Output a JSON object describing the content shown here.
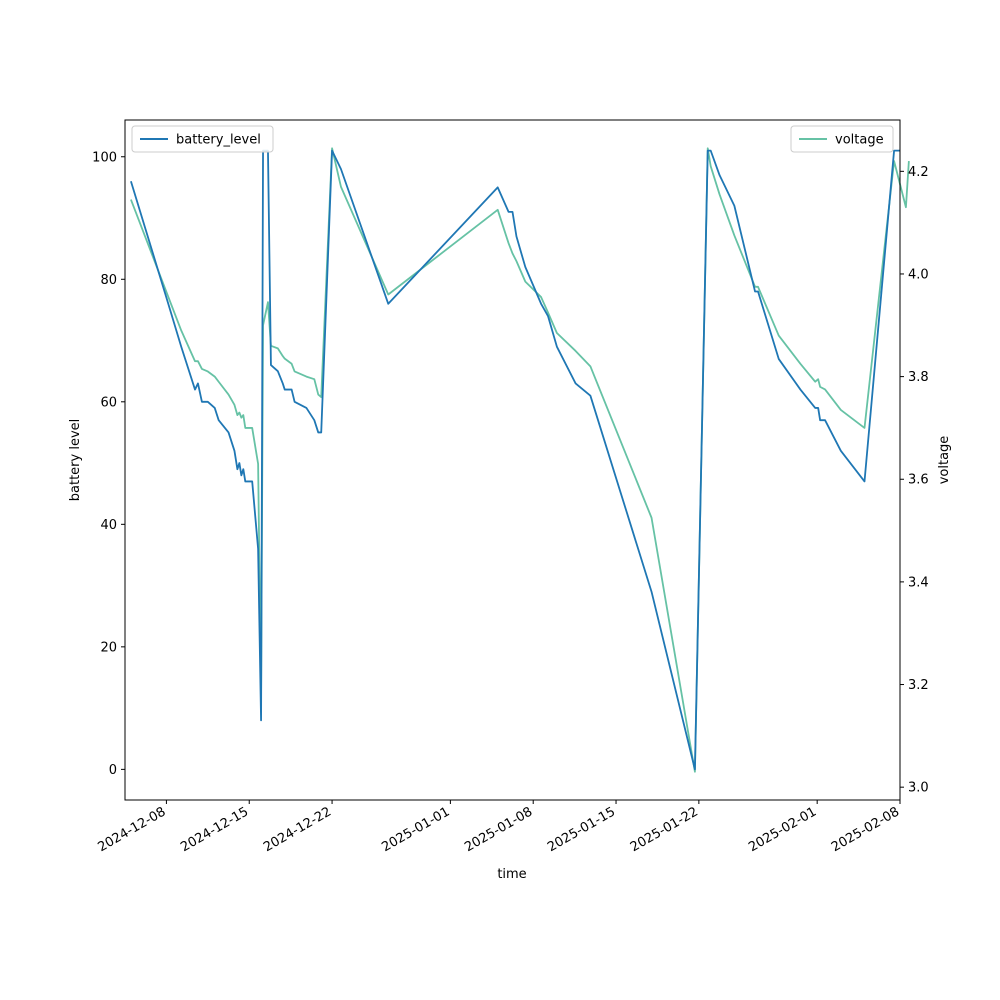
{
  "chart_data": {
    "type": "line",
    "xlabel": "time",
    "ylabel_left": "battery level",
    "ylabel_right": "voltage",
    "xlim": [
      "2024-12-04T12:00",
      "2025-02-08T00:00"
    ],
    "ylim_left": [
      -5,
      106
    ],
    "ylim_right": [
      2.975,
      4.3
    ],
    "xticks": [
      "2024-12-08",
      "2024-12-15",
      "2024-12-22",
      "2025-01-01",
      "2025-01-08",
      "2025-01-15",
      "2025-01-22",
      "2025-02-01",
      "2025-02-08"
    ],
    "yticks_left": [
      0,
      20,
      40,
      60,
      80,
      100
    ],
    "yticks_right": [
      "3.0",
      "3.2",
      "3.4",
      "3.6",
      "3.8",
      "4.0",
      "4.2"
    ],
    "grid": false,
    "legend_left": {
      "placement": "top-left",
      "label": "battery_level"
    },
    "legend_right": {
      "placement": "top-right",
      "label": "voltage"
    },
    "series": [
      {
        "name": "battery_level",
        "axis": "left",
        "color": "#1f77b4",
        "points": [
          [
            "2024-12-05T00:00",
            96
          ],
          [
            "2024-12-08T00:00",
            77
          ],
          [
            "2024-12-09T06:00",
            69
          ],
          [
            "2024-12-10T10:00",
            62
          ],
          [
            "2024-12-10T16:00",
            63
          ],
          [
            "2024-12-11T00:00",
            60
          ],
          [
            "2024-12-11T12:00",
            60
          ],
          [
            "2024-12-12T02:00",
            59
          ],
          [
            "2024-12-12T10:00",
            57
          ],
          [
            "2024-12-13T06:00",
            55
          ],
          [
            "2024-12-13T18:00",
            52
          ],
          [
            "2024-12-14T00:00",
            49
          ],
          [
            "2024-12-14T04:00",
            50
          ],
          [
            "2024-12-14T08:00",
            48
          ],
          [
            "2024-12-14T12:00",
            49
          ],
          [
            "2024-12-14T16:00",
            47
          ],
          [
            "2024-12-15T06:00",
            47
          ],
          [
            "2024-12-15T18:00",
            36
          ],
          [
            "2024-12-16T00:00",
            8
          ],
          [
            "2024-12-16T04:00",
            101
          ],
          [
            "2024-12-16T14:00",
            101
          ],
          [
            "2024-12-16T20:00",
            66
          ],
          [
            "2024-12-17T10:00",
            65
          ],
          [
            "2024-12-17T20:00",
            63
          ],
          [
            "2024-12-18T00:00",
            62
          ],
          [
            "2024-12-18T14:00",
            62
          ],
          [
            "2024-12-18T20:00",
            60
          ],
          [
            "2024-12-19T20:00",
            59
          ],
          [
            "2024-12-20T12:00",
            57
          ],
          [
            "2024-12-20T20:00",
            55
          ],
          [
            "2024-12-21T02:00",
            55
          ],
          [
            "2024-12-22T00:00",
            101
          ],
          [
            "2024-12-22T18:00",
            98
          ],
          [
            "2024-12-26T18:00",
            76
          ],
          [
            "2025-01-05T00:00",
            95
          ],
          [
            "2025-01-05T22:00",
            91
          ],
          [
            "2025-01-06T06:00",
            91
          ],
          [
            "2025-01-06T14:00",
            87
          ],
          [
            "2025-01-07T08:00",
            82
          ],
          [
            "2025-01-08T16:00",
            76
          ],
          [
            "2025-01-09T06:00",
            74
          ],
          [
            "2025-01-10T00:00",
            69
          ],
          [
            "2025-01-11T14:00",
            63
          ],
          [
            "2025-01-12T20:00",
            61
          ],
          [
            "2025-01-18T00:00",
            29
          ],
          [
            "2025-01-21T16:00",
            0
          ],
          [
            "2025-01-22T18:00",
            101
          ],
          [
            "2025-01-23T00:00",
            101
          ],
          [
            "2025-01-23T18:00",
            97
          ],
          [
            "2025-01-25T00:00",
            92
          ],
          [
            "2025-01-26T18:00",
            78
          ],
          [
            "2025-01-27T00:00",
            78
          ],
          [
            "2025-01-28T18:00",
            67
          ],
          [
            "2025-01-30T14:00",
            62
          ],
          [
            "2025-01-31T20:00",
            59
          ],
          [
            "2025-02-01T02:00",
            59
          ],
          [
            "2025-02-01T06:00",
            57
          ],
          [
            "2025-02-01T16:00",
            57
          ],
          [
            "2025-02-03T00:00",
            52
          ],
          [
            "2025-02-05T00:00",
            47
          ],
          [
            "2025-02-07T12:00",
            101
          ],
          [
            "2025-02-08T00:00",
            101
          ]
        ]
      },
      {
        "name": "voltage",
        "axis": "right",
        "color": "#66c2a5",
        "points": [
          [
            "2024-12-05T00:00",
            4.145
          ],
          [
            "2024-12-08T00:00",
            3.965
          ],
          [
            "2024-12-09T06:00",
            3.89
          ],
          [
            "2024-12-10T10:00",
            3.83
          ],
          [
            "2024-12-10T16:00",
            3.83
          ],
          [
            "2024-12-11T00:00",
            3.815
          ],
          [
            "2024-12-11T12:00",
            3.81
          ],
          [
            "2024-12-12T02:00",
            3.8
          ],
          [
            "2024-12-12T10:00",
            3.79
          ],
          [
            "2024-12-13T06:00",
            3.765
          ],
          [
            "2024-12-13T18:00",
            3.745
          ],
          [
            "2024-12-14T00:00",
            3.725
          ],
          [
            "2024-12-14T04:00",
            3.73
          ],
          [
            "2024-12-14T08:00",
            3.72
          ],
          [
            "2024-12-14T12:00",
            3.725
          ],
          [
            "2024-12-14T16:00",
            3.7
          ],
          [
            "2024-12-15T06:00",
            3.7
          ],
          [
            "2024-12-15T18:00",
            3.63
          ],
          [
            "2024-12-16T00:00",
            3.175
          ],
          [
            "2024-12-16T04:00",
            3.9
          ],
          [
            "2024-12-16T14:00",
            3.945
          ],
          [
            "2024-12-16T20:00",
            3.86
          ],
          [
            "2024-12-17T10:00",
            3.855
          ],
          [
            "2024-12-17T20:00",
            3.84
          ],
          [
            "2024-12-18T00:00",
            3.835
          ],
          [
            "2024-12-18T14:00",
            3.825
          ],
          [
            "2024-12-18T20:00",
            3.81
          ],
          [
            "2024-12-19T20:00",
            3.8
          ],
          [
            "2024-12-20T12:00",
            3.795
          ],
          [
            "2024-12-20T20:00",
            3.765
          ],
          [
            "2024-12-21T02:00",
            3.76
          ],
          [
            "2024-12-22T00:00",
            4.245
          ],
          [
            "2024-12-22T18:00",
            4.17
          ],
          [
            "2024-12-26T18:00",
            3.96
          ],
          [
            "2025-01-05T00:00",
            4.125
          ],
          [
            "2025-01-05T22:00",
            4.06
          ],
          [
            "2025-01-06T06:00",
            4.04
          ],
          [
            "2025-01-06T14:00",
            4.025
          ],
          [
            "2025-01-07T08:00",
            3.985
          ],
          [
            "2025-01-08T16:00",
            3.955
          ],
          [
            "2025-01-09T06:00",
            3.925
          ],
          [
            "2025-01-10T00:00",
            3.885
          ],
          [
            "2025-01-11T14:00",
            3.85
          ],
          [
            "2025-01-12T20:00",
            3.82
          ],
          [
            "2025-01-18T00:00",
            3.525
          ],
          [
            "2025-01-21T16:00",
            3.03
          ],
          [
            "2025-01-22T18:00",
            4.245
          ],
          [
            "2025-01-23T00:00",
            4.21
          ],
          [
            "2025-01-23T18:00",
            4.155
          ],
          [
            "2025-01-25T00:00",
            4.075
          ],
          [
            "2025-01-26T18:00",
            3.975
          ],
          [
            "2025-01-27T00:00",
            3.975
          ],
          [
            "2025-01-28T18:00",
            3.88
          ],
          [
            "2025-01-30T14:00",
            3.825
          ],
          [
            "2025-01-31T20:00",
            3.79
          ],
          [
            "2025-02-01T02:00",
            3.795
          ],
          [
            "2025-02-01T06:00",
            3.78
          ],
          [
            "2025-02-01T16:00",
            3.775
          ],
          [
            "2025-02-03T00:00",
            3.735
          ],
          [
            "2025-02-05T00:00",
            3.7
          ],
          [
            "2025-02-07T12:00",
            4.22
          ],
          [
            "2025-02-08T00:00",
            4.175
          ],
          [
            "2025-02-08T12:00",
            4.13
          ],
          [
            "2025-02-08T18:00",
            4.22
          ]
        ]
      }
    ]
  }
}
